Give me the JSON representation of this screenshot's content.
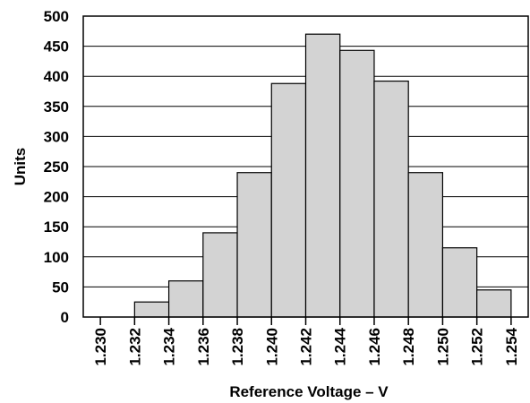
{
  "chart_data": {
    "type": "bar",
    "xlabel": "Reference Voltage – V",
    "ylabel": "Units",
    "ylim": [
      0,
      500
    ],
    "yticks": [
      "0",
      "50",
      "100",
      "150",
      "200",
      "250",
      "300",
      "350",
      "400",
      "450",
      "500"
    ],
    "xticks": [
      "1.230",
      "1.232",
      "1.234",
      "1.236",
      "1.238",
      "1.240",
      "1.242",
      "1.244",
      "1.246",
      "1.248",
      "1.250",
      "1.252",
      "1.254"
    ],
    "bins": [
      {
        "from": 1.23,
        "to": 1.232,
        "value": 0
      },
      {
        "from": 1.232,
        "to": 1.234,
        "value": 25
      },
      {
        "from": 1.234,
        "to": 1.236,
        "value": 60
      },
      {
        "from": 1.236,
        "to": 1.238,
        "value": 140
      },
      {
        "from": 1.238,
        "to": 1.24,
        "value": 240
      },
      {
        "from": 1.24,
        "to": 1.242,
        "value": 388
      },
      {
        "from": 1.242,
        "to": 1.244,
        "value": 470
      },
      {
        "from": 1.244,
        "to": 1.246,
        "value": 443
      },
      {
        "from": 1.246,
        "to": 1.248,
        "value": 392
      },
      {
        "from": 1.248,
        "to": 1.25,
        "value": 240
      },
      {
        "from": 1.25,
        "to": 1.252,
        "value": 115
      },
      {
        "from": 1.252,
        "to": 1.254,
        "value": 45
      }
    ],
    "grid": true,
    "bar_color": "#d3d3d3"
  }
}
